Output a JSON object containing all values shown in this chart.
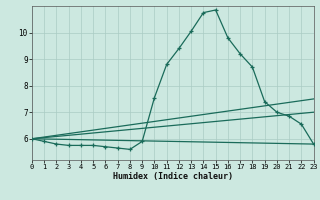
{
  "xlabel": "Humidex (Indice chaleur)",
  "bg_color": "#cce8e0",
  "grid_color": "#aaccc4",
  "line_color": "#1a6b5a",
  "xlim": [
    0,
    23
  ],
  "ylim": [
    5.2,
    11.0
  ],
  "xticks": [
    0,
    1,
    2,
    3,
    4,
    5,
    6,
    7,
    8,
    9,
    10,
    11,
    12,
    13,
    14,
    15,
    16,
    17,
    18,
    19,
    20,
    21,
    22,
    23
  ],
  "yticks": [
    6,
    7,
    8,
    9,
    10
  ],
  "main_x": [
    0,
    1,
    2,
    3,
    4,
    5,
    6,
    7,
    8,
    9,
    10,
    11,
    12,
    13,
    14,
    15,
    16,
    17,
    18,
    19,
    20,
    21,
    22,
    23
  ],
  "main_y": [
    6.0,
    5.9,
    5.8,
    5.75,
    5.75,
    5.75,
    5.7,
    5.65,
    5.6,
    5.9,
    7.55,
    8.8,
    9.4,
    10.05,
    10.75,
    10.85,
    9.8,
    9.2,
    8.7,
    7.4,
    7.0,
    6.85,
    6.55,
    5.8
  ],
  "line2_x": [
    0,
    23
  ],
  "line2_y": [
    6.0,
    7.5
  ],
  "line3_x": [
    0,
    23
  ],
  "line3_y": [
    6.0,
    7.0
  ],
  "line4_x": [
    0,
    23
  ],
  "line4_y": [
    6.0,
    5.8
  ]
}
